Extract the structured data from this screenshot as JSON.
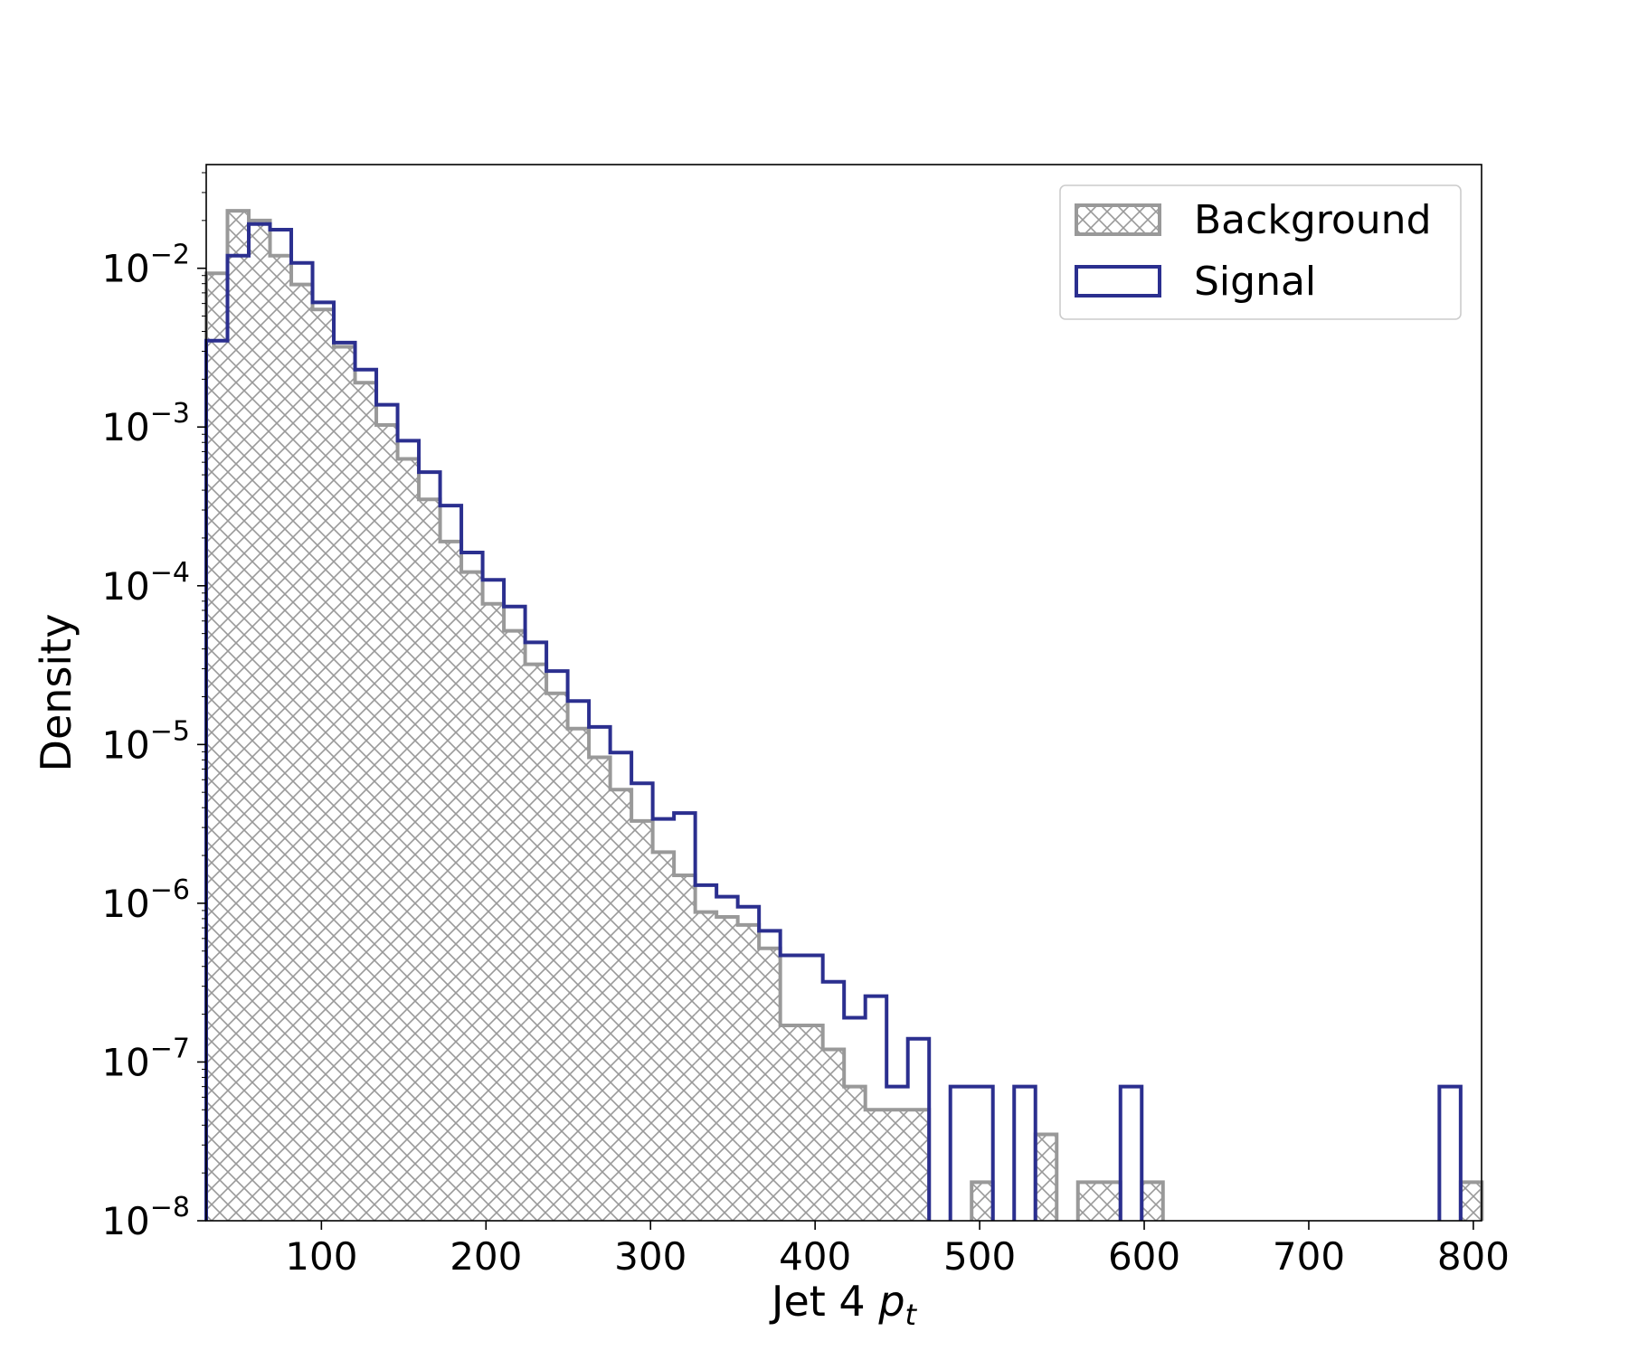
{
  "chart_data": {
    "type": "histogram",
    "title": "",
    "xlabel": "Jet 4 ",
    "xlabel_math": "p",
    "xlabel_sub": "t",
    "ylabel": "Density",
    "yscale": "log",
    "xlim": [
      30,
      805
    ],
    "ylim": [
      1e-08,
      0.045
    ],
    "grid": false,
    "legend_position": "top-right",
    "x_ticks": [
      {
        "value": 100,
        "label": "100"
      },
      {
        "value": 200,
        "label": "200"
      },
      {
        "value": 300,
        "label": "300"
      },
      {
        "value": 400,
        "label": "400"
      },
      {
        "value": 500,
        "label": "500"
      },
      {
        "value": 600,
        "label": "600"
      },
      {
        "value": 700,
        "label": "700"
      },
      {
        "value": 800,
        "label": "800"
      }
    ],
    "y_ticks": [
      {
        "value": 0.01,
        "base": "10",
        "exp": "−2"
      },
      {
        "value": 0.001,
        "base": "10",
        "exp": "−3"
      },
      {
        "value": 0.0001,
        "base": "10",
        "exp": "−4"
      },
      {
        "value": 1e-05,
        "base": "10",
        "exp": "−5"
      },
      {
        "value": 1e-06,
        "base": "10",
        "exp": "−6"
      },
      {
        "value": 1e-07,
        "base": "10",
        "exp": "−7"
      },
      {
        "value": 1e-08,
        "base": "10",
        "exp": "−8"
      }
    ],
    "bins": {
      "start": 30,
      "width": 12.92,
      "count": 60
    },
    "series": [
      {
        "name": "Background",
        "style": "hatched",
        "color": "#999999",
        "values": [
          0.0093,
          0.023,
          0.02,
          0.012,
          0.0079,
          0.0055,
          0.0032,
          0.0019,
          0.00103,
          0.00063,
          0.00035,
          0.00019,
          0.000122,
          7.7e-05,
          5.2e-05,
          3.2e-05,
          2.1e-05,
          1.26e-05,
          8.3e-06,
          5.2e-06,
          3.3e-06,
          2.1e-06,
          1.5e-06,
          8.8e-07,
          8.2e-07,
          7.3e-07,
          5.2e-07,
          1.7e-07,
          1.7e-07,
          1.2e-07,
          7e-08,
          5e-08,
          5e-08,
          5e-08,
          0,
          0,
          1.75e-08,
          0,
          0,
          3.5e-08,
          0,
          1.75e-08,
          1.75e-08,
          0,
          1.75e-08,
          0,
          0,
          0,
          0,
          0,
          0,
          0,
          0,
          0,
          0,
          0,
          0,
          0,
          0,
          1.75e-08
        ]
      },
      {
        "name": "Signal",
        "style": "step",
        "color": "#2b2f8f",
        "values": [
          0.0035,
          0.012,
          0.019,
          0.0175,
          0.0108,
          0.0061,
          0.0034,
          0.0023,
          0.00138,
          0.00082,
          0.00052,
          0.00032,
          0.000162,
          0.000109,
          7.4e-05,
          4.4e-05,
          2.9e-05,
          1.88e-05,
          1.29e-05,
          8.9e-06,
          5.7e-06,
          3.4e-06,
          3.7e-06,
          1.3e-06,
          1.1e-06,
          9.5e-07,
          6.7e-07,
          4.7e-07,
          4.7e-07,
          3.2e-07,
          1.9e-07,
          2.6e-07,
          7e-08,
          1.4e-07,
          0,
          7e-08,
          7e-08,
          0,
          7e-08,
          0,
          0,
          0,
          0,
          7e-08,
          0,
          0,
          0,
          0,
          0,
          0,
          0,
          0,
          0,
          0,
          0,
          0,
          0,
          0,
          7e-08,
          0
        ]
      }
    ]
  }
}
